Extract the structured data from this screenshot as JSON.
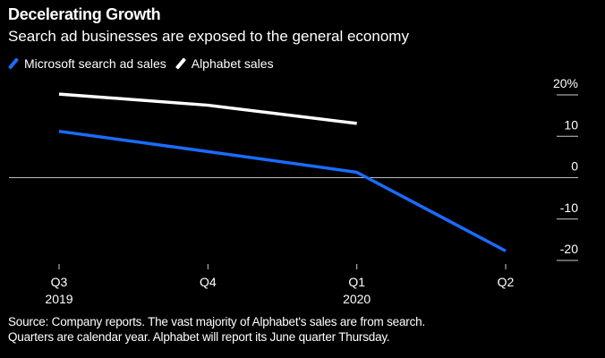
{
  "header": {
    "title": "Decelerating Growth",
    "subtitle": "Search ad businesses are exposed to the general economy"
  },
  "footnote": {
    "line1": "Source: Company reports. The vast majority of Alphabet's sales are from search.",
    "line2": "Quarters are calendar year. Alphabet will report its June quarter Thursday."
  },
  "chart_data": {
    "type": "line",
    "title": "Decelerating Growth",
    "subtitle": "Search ad businesses are exposed to the general economy",
    "xlabel": "",
    "ylabel": "",
    "categories": [
      "Q3 2019",
      "Q4",
      "Q1 2020",
      "Q2"
    ],
    "x_tick_labels": [
      {
        "line1": "Q3",
        "line2": "2019"
      },
      {
        "line1": "Q4",
        "line2": ""
      },
      {
        "line1": "Q1",
        "line2": "2020"
      },
      {
        "line1": "Q2",
        "line2": ""
      }
    ],
    "y_ticks": [
      20,
      10,
      0,
      -10,
      -20
    ],
    "y_tick_labels": [
      "20%",
      "10",
      "0",
      "-10",
      "-20"
    ],
    "ylim": [
      -20,
      20
    ],
    "y_axis_side": "right",
    "grid": false,
    "zero_line": true,
    "legend_position": "top-left",
    "series": [
      {
        "name": "Microsoft search ad sales",
        "color": "#1a6cff",
        "values": [
          11.2,
          6.3,
          1.3,
          -17.7
        ]
      },
      {
        "name": "Alphabet sales",
        "color": "#ffffff",
        "values": [
          20.2,
          17.5,
          13.1,
          null
        ]
      }
    ]
  }
}
